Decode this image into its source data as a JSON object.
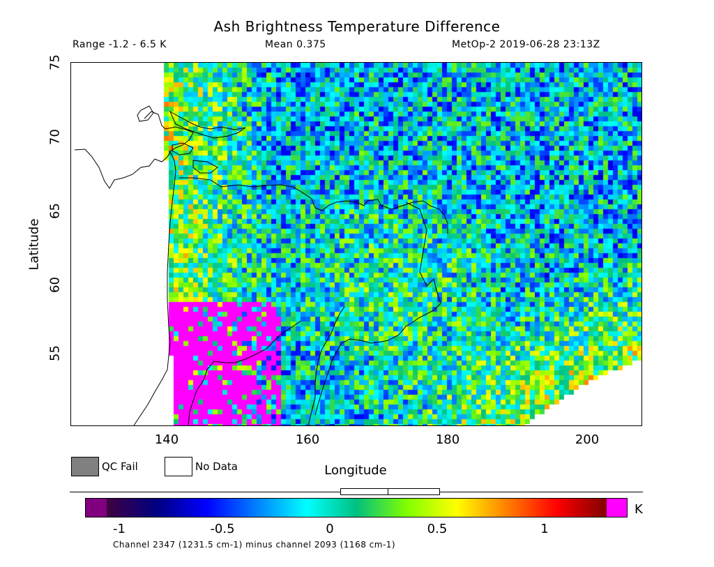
{
  "title": "Ash Brightness Temperature Difference",
  "stats": {
    "range": "Range -1.2 - 6.5 K",
    "mean": "Mean 0.375",
    "satellite_time": "MetOp-2 2019-06-28 23:13Z"
  },
  "map": {
    "x_label": "Longitude",
    "y_label": "Latitude",
    "x_ticks": [
      "140",
      "160",
      "180",
      "200"
    ],
    "y_ticks": [
      "75",
      "70",
      "65",
      "60",
      "55"
    ],
    "lon_range": [
      127,
      208
    ],
    "lat_range": [
      54.8,
      79.3
    ]
  },
  "legend": {
    "qc_fail": "QC Fail",
    "no_data": "No Data",
    "qc_fail_color": "#808080",
    "no_data_color": "#ffffff"
  },
  "colorbar": {
    "ticks": [
      "-1",
      "-0.5",
      "0",
      "0.5",
      "1"
    ],
    "unit": "K",
    "min": -1.15,
    "max": 1.3,
    "under_color": "#800080",
    "over_color": "#ff00ff",
    "stops": [
      "#400040",
      "#000080",
      "#0000ff",
      "#0080ff",
      "#00ffff",
      "#00c080",
      "#80ff00",
      "#ffff00",
      "#ff8000",
      "#ff0000",
      "#800000"
    ],
    "caption": "Channel 2347 (1231.5 cm-1) minus channel 2093 (1168 cm-1)"
  }
}
